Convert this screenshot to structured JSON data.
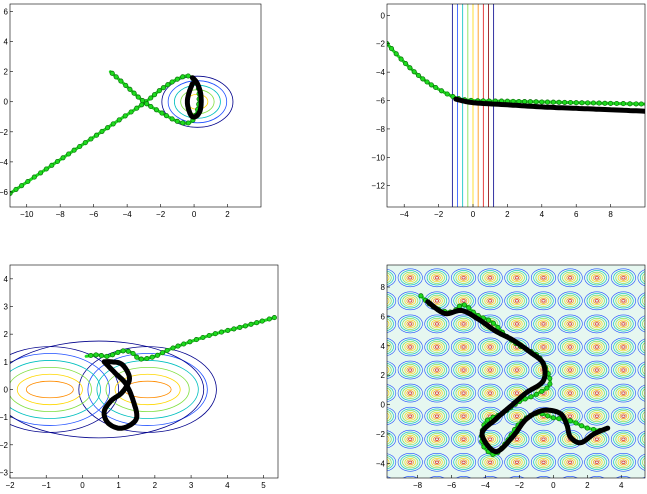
{
  "chart_data": [
    {
      "type": "line",
      "title": "",
      "xlabel": "",
      "ylabel": "",
      "xlim": [
        -11,
        4
      ],
      "ylim": [
        -7,
        6.5
      ],
      "xticks": [
        -10,
        -8,
        -6,
        -4,
        -2,
        0,
        2
      ],
      "yticks": [
        -6,
        -4,
        -2,
        0,
        2,
        4,
        6
      ],
      "contours": {
        "kind": "ellipses",
        "center": [
          0.2,
          0.0
        ],
        "levels": [
          0.5,
          0.8,
          1.1,
          1.4,
          1.7
        ]
      },
      "series": [
        {
          "role": "path",
          "x": [
            -11,
            -9,
            -7,
            -5,
            -3,
            -2,
            -1,
            -0.3,
            0.2,
            0.3,
            0.1,
            -0.3,
            -1,
            -2,
            -3,
            -4,
            -5
          ],
          "y": [
            -6.1,
            -4.6,
            -3.1,
            -1.6,
            -0.1,
            0.8,
            1.5,
            1.7,
            1.1,
            0.1,
            -0.9,
            -1.4,
            -1.3,
            -0.7,
            0.0,
            1.0,
            2.0
          ]
        },
        {
          "role": "trace",
          "x": [
            -0.1,
            0.0,
            0.2,
            0.4,
            0.4,
            0.2,
            -0.1,
            -0.3,
            -0.4,
            -0.3,
            -0.1
          ],
          "y": [
            1.6,
            1.5,
            1.2,
            0.5,
            -0.4,
            -0.9,
            -1.0,
            -0.6,
            0.0,
            0.6,
            1.2
          ]
        }
      ]
    },
    {
      "type": "line",
      "title": "",
      "xlabel": "",
      "ylabel": "",
      "xlim": [
        -5,
        10
      ],
      "ylim": [
        -13.5,
        0.8
      ],
      "xticks": [
        -4,
        -2,
        0,
        2,
        4,
        6,
        8
      ],
      "yticks": [
        0,
        -2,
        -4,
        -6,
        -8,
        -10,
        -12
      ],
      "contours": {
        "kind": "vertical",
        "x": [
          -1.2,
          -0.9,
          -0.6,
          -0.3,
          0.0,
          0.3,
          0.6,
          0.9,
          1.2
        ]
      },
      "series": [
        {
          "role": "path",
          "x": [
            -5,
            -4,
            -3,
            -2,
            -1,
            0,
            2,
            4,
            6,
            8,
            10
          ],
          "y": [
            -2.0,
            -3.3,
            -4.4,
            -5.2,
            -5.8,
            -6.0,
            -6.05,
            -6.1,
            -6.15,
            -6.2,
            -6.25
          ]
        },
        {
          "role": "trace",
          "x": [
            -1,
            0,
            2,
            4,
            6,
            8,
            10
          ],
          "y": [
            -5.9,
            -6.15,
            -6.3,
            -6.45,
            -6.55,
            -6.65,
            -6.75
          ]
        }
      ]
    },
    {
      "type": "line",
      "title": "",
      "xlabel": "",
      "ylabel": "",
      "xlim": [
        -2,
        5.4
      ],
      "ylim": [
        -3.2,
        4.5
      ],
      "xticks": [
        -2,
        -1,
        0,
        1,
        2,
        3,
        4,
        5
      ],
      "yticks": [
        -3,
        -2,
        -1,
        0,
        1,
        2,
        3,
        4
      ],
      "contours": {
        "kind": "double-well",
        "centers": [
          [
            -0.9,
            0.0
          ],
          [
            1.8,
            0.0
          ]
        ],
        "levels": [
          0.3,
          0.55,
          0.8,
          1.05,
          1.3,
          1.55
        ]
      },
      "series": [
        {
          "role": "path",
          "x": [
            5.3,
            4.5,
            3.5,
            2.5,
            2.0,
            1.6,
            1.4,
            1.2,
            1.0,
            0.7,
            0.4,
            0.1
          ],
          "y": [
            2.6,
            2.3,
            1.95,
            1.5,
            1.2,
            1.1,
            1.3,
            1.4,
            1.35,
            1.2,
            1.25,
            1.2
          ]
        },
        {
          "role": "trace",
          "x": [
            0.6,
            0.9,
            1.2,
            1.4,
            1.5,
            1.3,
            1.0,
            0.7,
            0.6,
            0.8,
            1.1,
            1.3,
            1.1,
            0.8,
            0.6
          ],
          "y": [
            1.0,
            0.6,
            0.2,
            -0.4,
            -1.0,
            -1.3,
            -1.4,
            -1.2,
            -0.8,
            -0.4,
            -0.1,
            0.4,
            0.9,
            1.0,
            1.0
          ]
        }
      ]
    },
    {
      "type": "line",
      "title": "",
      "xlabel": "",
      "ylabel": "",
      "xlim": [
        -9.8,
        5.4
      ],
      "ylim": [
        -5,
        9.5
      ],
      "xticks": [
        -8,
        -6,
        -4,
        -2,
        0,
        2,
        4
      ],
      "yticks": [
        -4,
        -2,
        0,
        2,
        4,
        6,
        8
      ],
      "contours": {
        "kind": "periodic-grid"
      },
      "series": [
        {
          "role": "path",
          "x": [
            -7.8,
            -7,
            -6,
            -5.3,
            -4.5,
            -3.6,
            -2.8,
            -2,
            -1,
            -0.5,
            -0.2,
            -1,
            -2,
            -3,
            -4,
            -4.2,
            -3.5,
            -2.8,
            -2,
            -1,
            0,
            1,
            2,
            3
          ],
          "y": [
            7.4,
            6.6,
            6.3,
            6.8,
            6.1,
            5.6,
            4.7,
            4.0,
            3.4,
            2.6,
            1.4,
            0.7,
            0.2,
            -0.6,
            -1.2,
            -2.6,
            -3.4,
            -2.6,
            -1.3,
            -0.6,
            -0.9,
            -1.1,
            -1.6,
            -1.8
          ]
        },
        {
          "role": "trace",
          "x": [
            -7.4,
            -6.4,
            -5.4,
            -4.4,
            -3.4,
            -2.4,
            -1.4,
            -0.6,
            -0.6,
            -1.6,
            -2.4,
            -3.4,
            -4.2,
            -3.4,
            -2.4,
            -1.6,
            -0.6,
            0.4,
            0.8,
            1.0,
            1.6,
            2.4,
            3.2
          ],
          "y": [
            7.0,
            6.2,
            6.4,
            5.8,
            5.0,
            4.4,
            3.6,
            2.8,
            1.6,
            0.8,
            0.0,
            -1.0,
            -2.0,
            -3.2,
            -2.2,
            -1.0,
            -0.4,
            -0.6,
            -1.4,
            -2.2,
            -2.6,
            -2.0,
            -1.6
          ]
        }
      ]
    }
  ],
  "colors": {
    "path": "#1fdc1f",
    "marker_edge": "#0b6e0b",
    "trace": "#000000",
    "contour_levels": [
      "#00008b",
      "#2050ff",
      "#00bfbf",
      "#7fdf3f",
      "#ffd700",
      "#ff8c00",
      "#e01010",
      "#8b0000"
    ]
  }
}
